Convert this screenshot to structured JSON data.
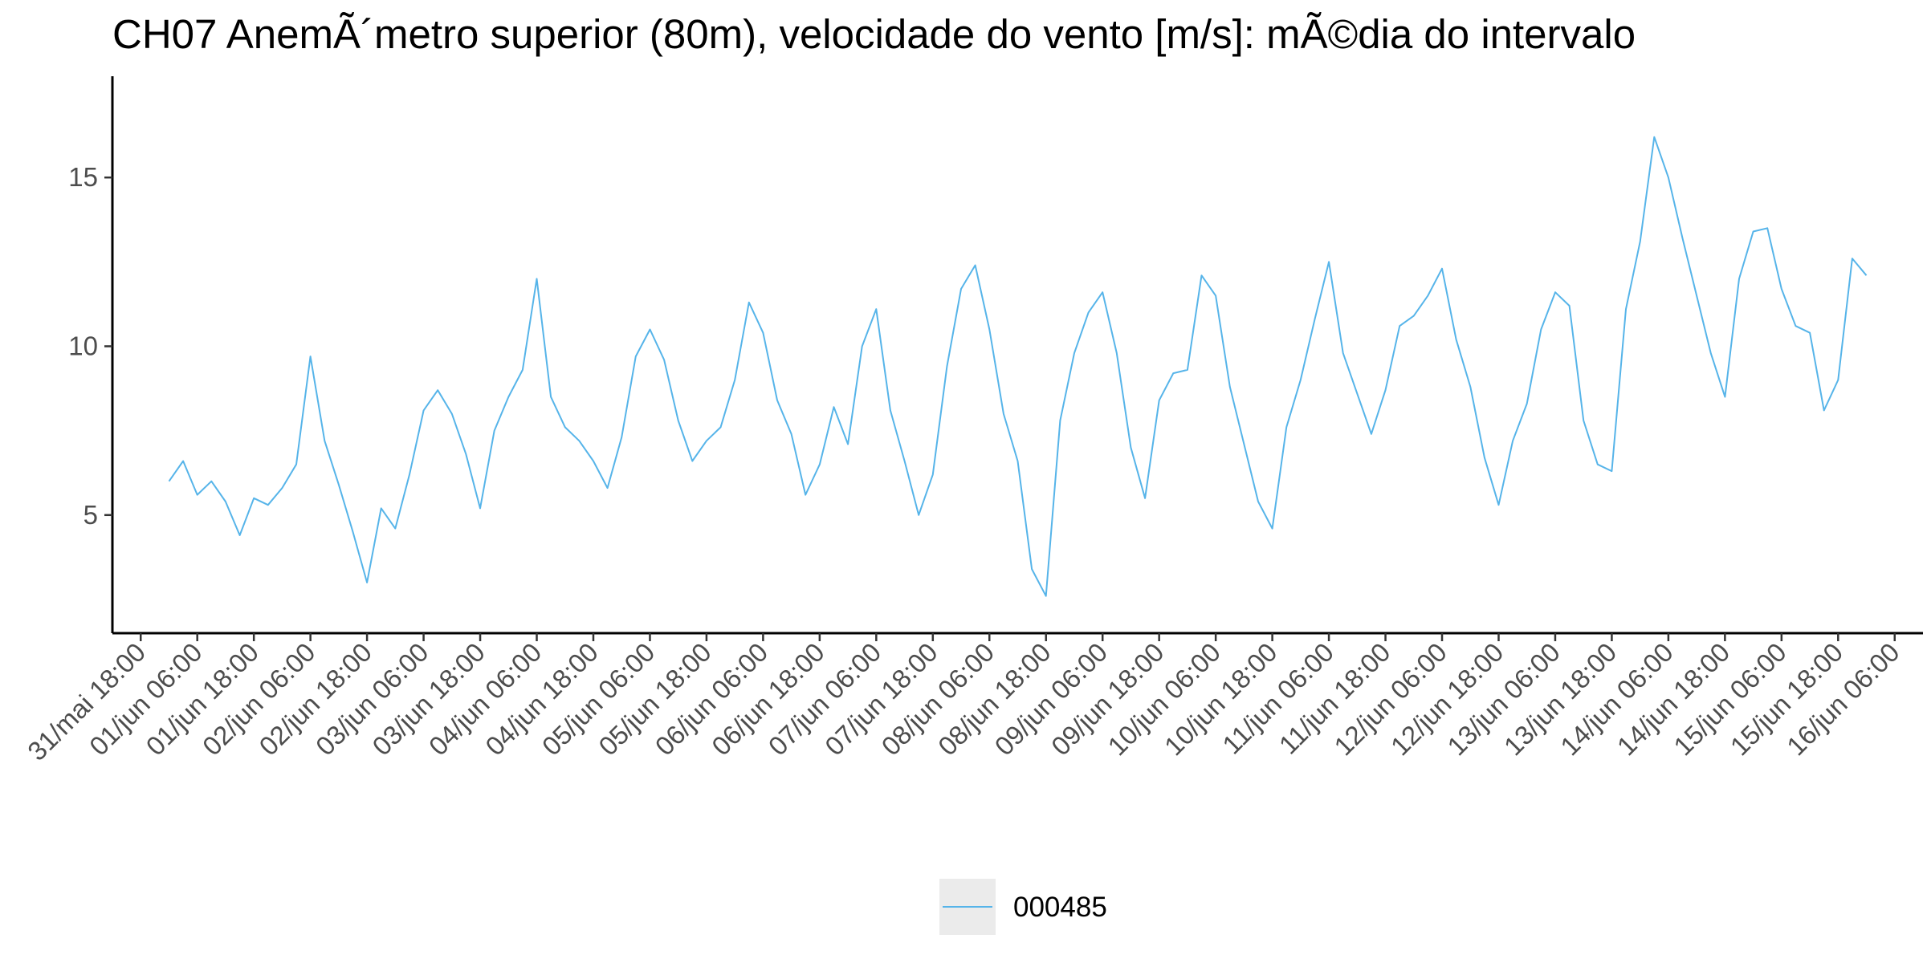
{
  "chart_data": {
    "type": "line",
    "title": "CH07 AnemÃ´metro superior (80m), velocidade do vento [m/s]: mÃ©dia do intervalo",
    "xlabel": "",
    "ylabel": "",
    "ylim": [
      1.5,
      18.0
    ],
    "yticks": [
      5,
      10,
      15
    ],
    "xlim": [
      "2024-05-31T12:00",
      "2024-06-16T12:00"
    ],
    "x_tick_labels": [
      "31/mai 18:00",
      "01/jun 06:00",
      "01/jun 18:00",
      "02/jun 06:00",
      "02/jun 18:00",
      "03/jun 06:00",
      "03/jun 18:00",
      "04/jun 06:00",
      "04/jun 18:00",
      "05/jun 06:00",
      "05/jun 18:00",
      "06/jun 06:00",
      "06/jun 18:00",
      "07/jun 06:00",
      "07/jun 18:00",
      "08/jun 06:00",
      "08/jun 18:00",
      "09/jun 06:00",
      "09/jun 18:00",
      "10/jun 06:00",
      "10/jun 18:00",
      "11/jun 06:00",
      "11/jun 18:00",
      "12/jun 06:00",
      "12/jun 18:00",
      "13/jun 06:00",
      "13/jun 18:00",
      "14/jun 06:00",
      "14/jun 18:00",
      "15/jun 06:00",
      "15/jun 18:00",
      "16/jun 06:00"
    ],
    "grid": false,
    "legend_position": "bottom",
    "series": [
      {
        "name": "000485",
        "color": "#56B4E9",
        "x": [
          "2024-06-01T00:00",
          "2024-06-01T03:00",
          "2024-06-01T06:00",
          "2024-06-01T09:00",
          "2024-06-01T12:00",
          "2024-06-01T15:00",
          "2024-06-01T18:00",
          "2024-06-01T21:00",
          "2024-06-02T00:00",
          "2024-06-02T03:00",
          "2024-06-02T06:00",
          "2024-06-02T09:00",
          "2024-06-02T12:00",
          "2024-06-02T15:00",
          "2024-06-02T18:00",
          "2024-06-02T21:00",
          "2024-06-03T00:00",
          "2024-06-03T03:00",
          "2024-06-03T06:00",
          "2024-06-03T09:00",
          "2024-06-03T12:00",
          "2024-06-03T15:00",
          "2024-06-03T18:00",
          "2024-06-03T21:00",
          "2024-06-04T00:00",
          "2024-06-04T03:00",
          "2024-06-04T06:00",
          "2024-06-04T09:00",
          "2024-06-04T12:00",
          "2024-06-04T15:00",
          "2024-06-04T18:00",
          "2024-06-04T21:00",
          "2024-06-05T00:00",
          "2024-06-05T03:00",
          "2024-06-05T06:00",
          "2024-06-05T09:00",
          "2024-06-05T12:00",
          "2024-06-05T15:00",
          "2024-06-05T18:00",
          "2024-06-05T21:00",
          "2024-06-06T00:00",
          "2024-06-06T03:00",
          "2024-06-06T06:00",
          "2024-06-06T09:00",
          "2024-06-06T12:00",
          "2024-06-06T15:00",
          "2024-06-06T18:00",
          "2024-06-06T21:00",
          "2024-06-07T00:00",
          "2024-06-07T03:00",
          "2024-06-07T06:00",
          "2024-06-07T09:00",
          "2024-06-07T12:00",
          "2024-06-07T15:00",
          "2024-06-07T18:00",
          "2024-06-07T21:00",
          "2024-06-08T00:00",
          "2024-06-08T03:00",
          "2024-06-08T06:00",
          "2024-06-08T09:00",
          "2024-06-08T12:00",
          "2024-06-08T15:00",
          "2024-06-08T18:00",
          "2024-06-08T21:00",
          "2024-06-09T00:00",
          "2024-06-09T03:00",
          "2024-06-09T06:00",
          "2024-06-09T09:00",
          "2024-06-09T12:00",
          "2024-06-09T15:00",
          "2024-06-09T18:00",
          "2024-06-09T21:00",
          "2024-06-10T00:00",
          "2024-06-10T03:00",
          "2024-06-10T06:00",
          "2024-06-10T09:00",
          "2024-06-10T12:00",
          "2024-06-10T15:00",
          "2024-06-10T18:00",
          "2024-06-10T21:00",
          "2024-06-11T00:00",
          "2024-06-11T03:00",
          "2024-06-11T06:00",
          "2024-06-11T09:00",
          "2024-06-11T12:00",
          "2024-06-11T15:00",
          "2024-06-11T18:00",
          "2024-06-11T21:00",
          "2024-06-12T00:00",
          "2024-06-12T03:00",
          "2024-06-12T06:00",
          "2024-06-12T09:00",
          "2024-06-12T12:00",
          "2024-06-12T15:00",
          "2024-06-12T18:00",
          "2024-06-12T21:00",
          "2024-06-13T00:00",
          "2024-06-13T03:00",
          "2024-06-13T06:00",
          "2024-06-13T09:00",
          "2024-06-13T12:00",
          "2024-06-13T15:00",
          "2024-06-13T18:00",
          "2024-06-13T21:00",
          "2024-06-14T00:00",
          "2024-06-14T03:00",
          "2024-06-14T06:00",
          "2024-06-14T09:00",
          "2024-06-14T12:00",
          "2024-06-14T15:00",
          "2024-06-14T18:00",
          "2024-06-14T21:00",
          "2024-06-15T00:00",
          "2024-06-15T03:00",
          "2024-06-15T06:00",
          "2024-06-15T09:00",
          "2024-06-15T12:00",
          "2024-06-15T15:00",
          "2024-06-15T18:00",
          "2024-06-15T21:00",
          "2024-06-16T00:00"
        ],
        "values": [
          6.0,
          6.6,
          5.6,
          6.0,
          5.4,
          4.4,
          5.5,
          5.3,
          5.8,
          6.5,
          9.7,
          7.2,
          5.9,
          4.5,
          3.0,
          5.2,
          4.6,
          6.2,
          8.1,
          8.7,
          8.0,
          6.8,
          5.2,
          7.5,
          8.5,
          9.3,
          12.0,
          8.5,
          7.6,
          7.2,
          6.6,
          5.8,
          7.3,
          9.7,
          10.5,
          9.6,
          7.8,
          6.6,
          7.2,
          7.6,
          9.0,
          11.3,
          10.4,
          8.4,
          7.4,
          5.6,
          6.5,
          8.2,
          7.1,
          10.0,
          11.1,
          8.1,
          6.6,
          5.0,
          6.2,
          9.4,
          11.7,
          12.4,
          10.5,
          8.0,
          6.6,
          3.4,
          2.6,
          7.8,
          9.8,
          11.0,
          11.6,
          9.8,
          7.0,
          5.5,
          8.4,
          9.2,
          9.3,
          12.1,
          11.5,
          8.8,
          7.1,
          5.4,
          4.6,
          7.6,
          9.0,
          10.8,
          12.5,
          9.8,
          8.6,
          7.4,
          8.7,
          10.6,
          10.9,
          11.5,
          12.3,
          10.2,
          8.8,
          6.7,
          5.3,
          7.2,
          8.3,
          10.5,
          11.6,
          11.2,
          7.8,
          6.5,
          6.3,
          11.1,
          13.1,
          16.2,
          15.0,
          13.2,
          11.5,
          9.8,
          8.5,
          12.0,
          13.4,
          13.5,
          11.7,
          10.6,
          10.4,
          8.1,
          9.0,
          12.6,
          12.1
        ]
      }
    ],
    "legend": [
      {
        "label": "000485",
        "color": "#56B4E9"
      }
    ]
  }
}
